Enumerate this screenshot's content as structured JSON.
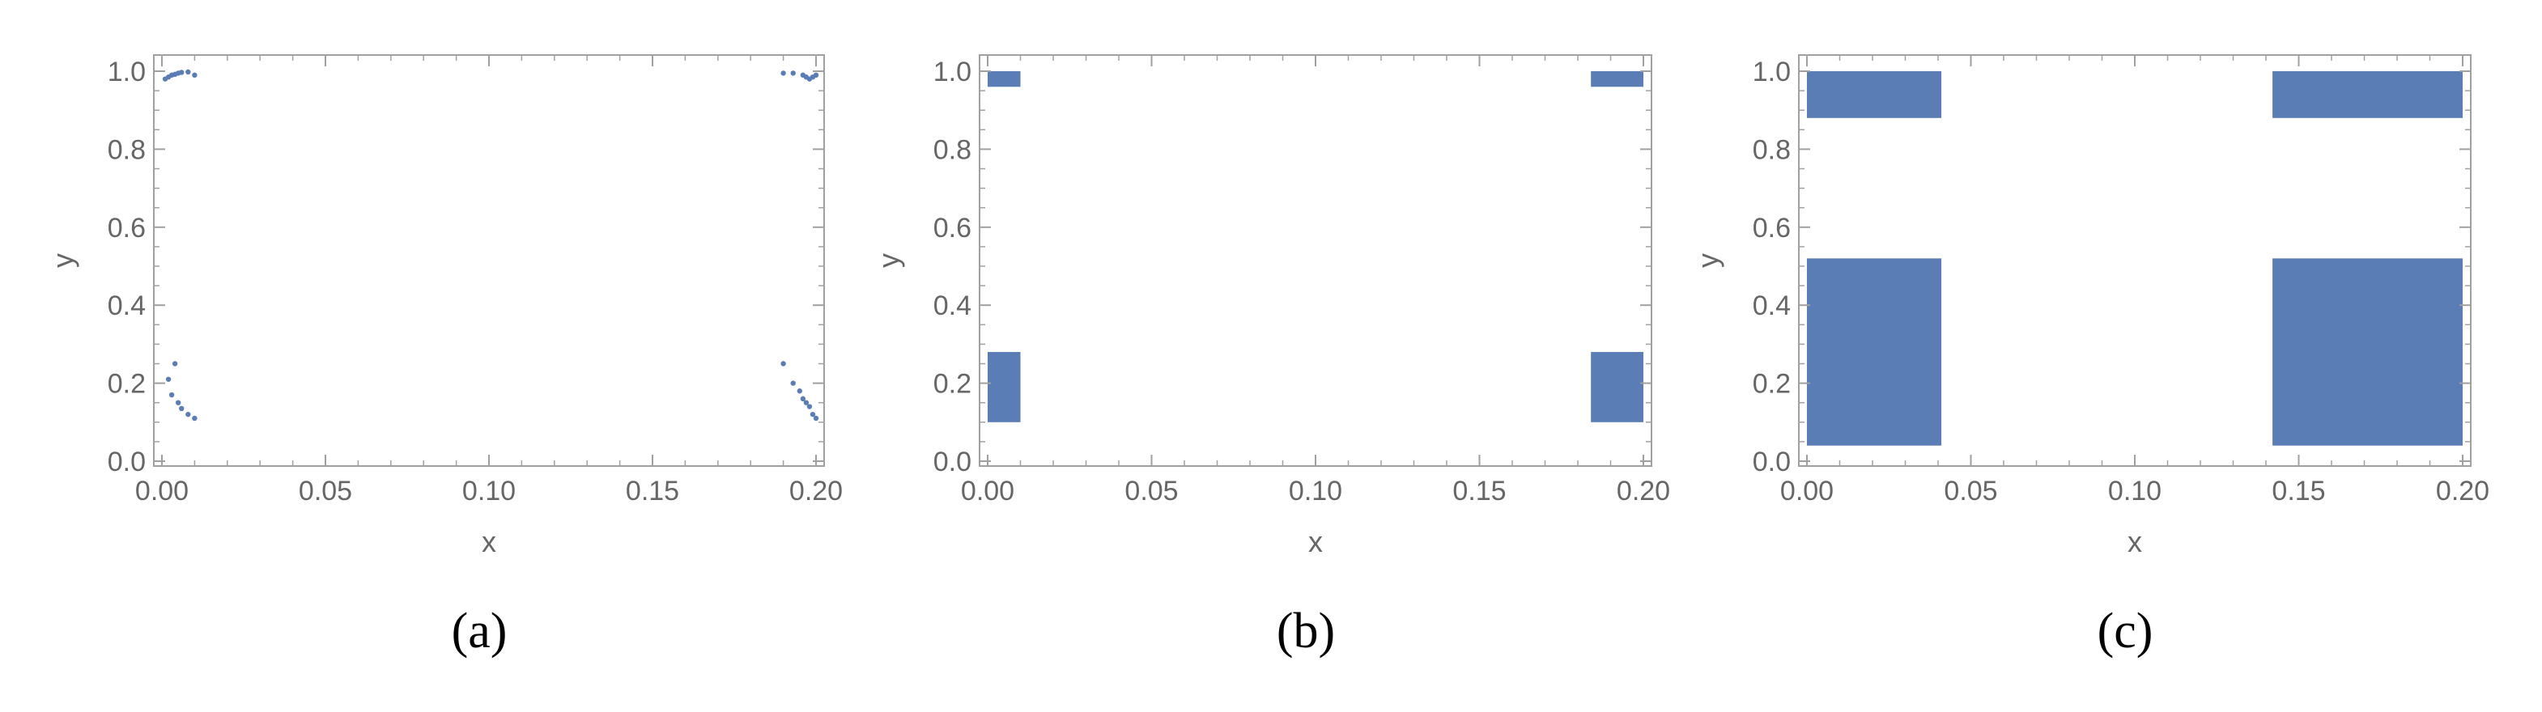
{
  "colors": {
    "marker": "#5b7db5",
    "frame": "#a0a0a0",
    "tick_text": "#666666",
    "panel_label": "#000000"
  },
  "chart_data": [
    {
      "type": "scatter",
      "panel_label": "(a)",
      "xlabel": "x",
      "ylabel": "y",
      "xlim": [
        0,
        0.2
      ],
      "ylim": [
        0,
        1
      ],
      "xticks": [
        "0.00",
        "0.05",
        "0.10",
        "0.15",
        "0.20"
      ],
      "yticks": [
        "0.0",
        "0.2",
        "0.4",
        "0.6",
        "0.8",
        "1.0"
      ],
      "grid": false,
      "points": [
        {
          "x": 0.001,
          "y": 0.98
        },
        {
          "x": 0.002,
          "y": 0.985
        },
        {
          "x": 0.003,
          "y": 0.99
        },
        {
          "x": 0.004,
          "y": 0.992
        },
        {
          "x": 0.005,
          "y": 0.995
        },
        {
          "x": 0.006,
          "y": 0.997
        },
        {
          "x": 0.008,
          "y": 0.998
        },
        {
          "x": 0.01,
          "y": 0.99
        },
        {
          "x": 0.004,
          "y": 0.25
        },
        {
          "x": 0.002,
          "y": 0.21
        },
        {
          "x": 0.003,
          "y": 0.17
        },
        {
          "x": 0.005,
          "y": 0.15
        },
        {
          "x": 0.006,
          "y": 0.135
        },
        {
          "x": 0.008,
          "y": 0.12
        },
        {
          "x": 0.01,
          "y": 0.11
        },
        {
          "x": 0.19,
          "y": 0.995
        },
        {
          "x": 0.193,
          "y": 0.995
        },
        {
          "x": 0.196,
          "y": 0.99
        },
        {
          "x": 0.197,
          "y": 0.985
        },
        {
          "x": 0.198,
          "y": 0.98
        },
        {
          "x": 0.199,
          "y": 0.985
        },
        {
          "x": 0.2,
          "y": 0.99
        },
        {
          "x": 0.19,
          "y": 0.25
        },
        {
          "x": 0.193,
          "y": 0.2
        },
        {
          "x": 0.195,
          "y": 0.18
        },
        {
          "x": 0.196,
          "y": 0.16
        },
        {
          "x": 0.197,
          "y": 0.15
        },
        {
          "x": 0.198,
          "y": 0.14
        },
        {
          "x": 0.199,
          "y": 0.12
        },
        {
          "x": 0.2,
          "y": 0.11
        }
      ]
    },
    {
      "type": "area",
      "panel_label": "(b)",
      "xlabel": "x",
      "ylabel": "y",
      "xlim": [
        0,
        0.2
      ],
      "ylim": [
        0,
        1
      ],
      "xticks": [
        "0.00",
        "0.05",
        "0.10",
        "0.15",
        "0.20"
      ],
      "yticks": [
        "0.0",
        "0.2",
        "0.4",
        "0.6",
        "0.8",
        "1.0"
      ],
      "grid": false,
      "regions": [
        {
          "x": [
            0.0,
            0.01
          ],
          "y": [
            0.96,
            1.0
          ]
        },
        {
          "x": [
            0.0,
            0.01
          ],
          "y": [
            0.1,
            0.28
          ]
        },
        {
          "x": [
            0.184,
            0.2
          ],
          "y": [
            0.96,
            1.0
          ]
        },
        {
          "x": [
            0.184,
            0.2
          ],
          "y": [
            0.1,
            0.28
          ]
        }
      ]
    },
    {
      "type": "area",
      "panel_label": "(c)",
      "xlabel": "x",
      "ylabel": "y",
      "xlim": [
        0,
        0.2
      ],
      "ylim": [
        0,
        1
      ],
      "xticks": [
        "0.00",
        "0.05",
        "0.10",
        "0.15",
        "0.20"
      ],
      "yticks": [
        "0.0",
        "0.2",
        "0.4",
        "0.6",
        "0.8",
        "1.0"
      ],
      "grid": false,
      "regions": [
        {
          "x": [
            0.0,
            0.041
          ],
          "y": [
            0.88,
            1.0
          ]
        },
        {
          "x": [
            0.0,
            0.041
          ],
          "y": [
            0.04,
            0.52
          ]
        },
        {
          "x": [
            0.142,
            0.2
          ],
          "y": [
            0.88,
            1.0
          ]
        },
        {
          "x": [
            0.142,
            0.2
          ],
          "y": [
            0.04,
            0.52
          ]
        }
      ]
    }
  ]
}
